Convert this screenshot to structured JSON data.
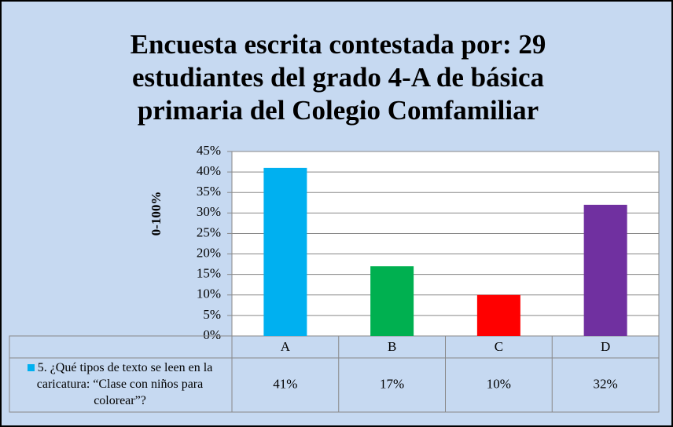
{
  "chart_data": {
    "type": "bar",
    "title": "Encuesta escrita contestada por: 29 estudiantes del grado 4-A de básica primaria del Colegio Comfamiliar",
    "y_label": "0-100%",
    "categories": [
      "A",
      "B",
      "C",
      "D"
    ],
    "series": [
      {
        "name": "5. ¿Qué tipos de texto se leen en la caricatura: “Clase con niños para colorear”?",
        "color": "#00b0f0",
        "colors": [
          "#00b0f0",
          "#00b050",
          "#ff0000",
          "#7030a0"
        ],
        "values": [
          41,
          17,
          10,
          32
        ],
        "value_labels": [
          "41%",
          "17%",
          "10%",
          "32%"
        ]
      }
    ],
    "ylim": [
      0,
      45
    ],
    "yticks": [
      {
        "value": 0,
        "label": "0%"
      },
      {
        "value": 5,
        "label": "5%"
      },
      {
        "value": 10,
        "label": "10%"
      },
      {
        "value": 15,
        "label": "15%"
      },
      {
        "value": 20,
        "label": "20%"
      },
      {
        "value": 25,
        "label": "25%"
      },
      {
        "value": 30,
        "label": "30%"
      },
      {
        "value": 35,
        "label": "35%"
      },
      {
        "value": 40,
        "label": "40%"
      },
      {
        "value": 45,
        "label": "45%"
      }
    ],
    "grid": true
  }
}
